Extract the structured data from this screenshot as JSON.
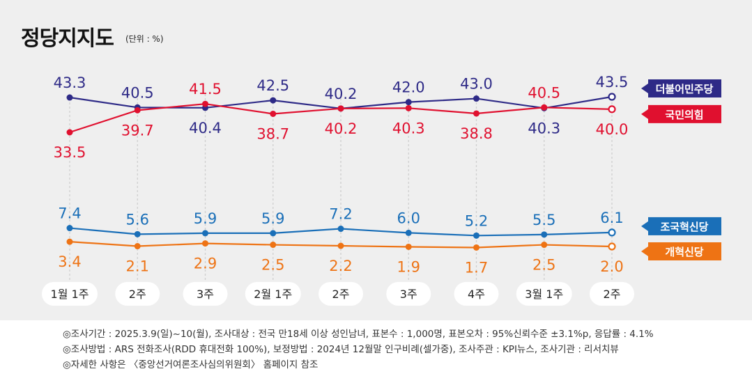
{
  "title": "정당지지도",
  "unit": "(단위 : %)",
  "colors": {
    "background": "#efefef",
    "minjoo": "#2e2a87",
    "ppp": "#e0102f",
    "rebuild": "#1a6fb8",
    "reform": "#ee7314",
    "gridline": "#cfcfcf"
  },
  "chart_data": {
    "type": "line",
    "title": "정당지지도",
    "unit": "(단위 : %)",
    "categories": [
      "1월 1주",
      "2주",
      "3주",
      "2월 1주",
      "2주",
      "3주",
      "4주",
      "3월 1주",
      "2주"
    ],
    "series": [
      {
        "name": "더불어민주당",
        "color": "#2e2a87",
        "values": [
          43.3,
          40.5,
          40.4,
          42.5,
          40.2,
          42.0,
          43.0,
          40.3,
          43.5
        ],
        "label_pos": [
          "above",
          "above",
          "below",
          "above",
          "above",
          "above",
          "above",
          "below",
          "above"
        ]
      },
      {
        "name": "국민의힘",
        "color": "#e0102f",
        "values": [
          33.5,
          39.7,
          41.5,
          38.7,
          40.2,
          40.3,
          38.8,
          40.5,
          40.0
        ],
        "label_pos": [
          "below",
          "below",
          "above",
          "below",
          "below",
          "below",
          "below",
          "above",
          "below"
        ]
      },
      {
        "name": "조국혁신당",
        "color": "#1a6fb8",
        "values": [
          7.4,
          5.6,
          5.9,
          5.9,
          7.2,
          6.0,
          5.2,
          5.5,
          6.1
        ],
        "label_pos": [
          "above",
          "above",
          "above",
          "above",
          "above",
          "above",
          "above",
          "above",
          "above"
        ]
      },
      {
        "name": "개혁신당",
        "color": "#ee7314",
        "values": [
          3.4,
          2.1,
          2.9,
          2.5,
          2.2,
          1.9,
          1.7,
          2.5,
          2.0
        ],
        "label_pos": [
          "below",
          "below",
          "below",
          "below",
          "below",
          "below",
          "below",
          "below",
          "below"
        ]
      }
    ]
  },
  "notes": [
    "◎조사기간 : 2025.3.9(일)~10(월), 조사대상 : 전국 만18세 이상 성인남녀, 표본수 : 1,000명, 표본오차 : 95%신뢰수준 ±3.1%p, 응답률 : 4.1%",
    "◎조사방법 : ARS 전화조사(RDD 휴대전화 100%), 보정방법 : 2024년 12월말 인구비례(셀가중), 조사주관 : KPI뉴스, 조사기관 : 리서치뷰",
    "◎자세한 사항은 〈중앙선거여론조사심의위원회〉 홈페이지 참조"
  ]
}
